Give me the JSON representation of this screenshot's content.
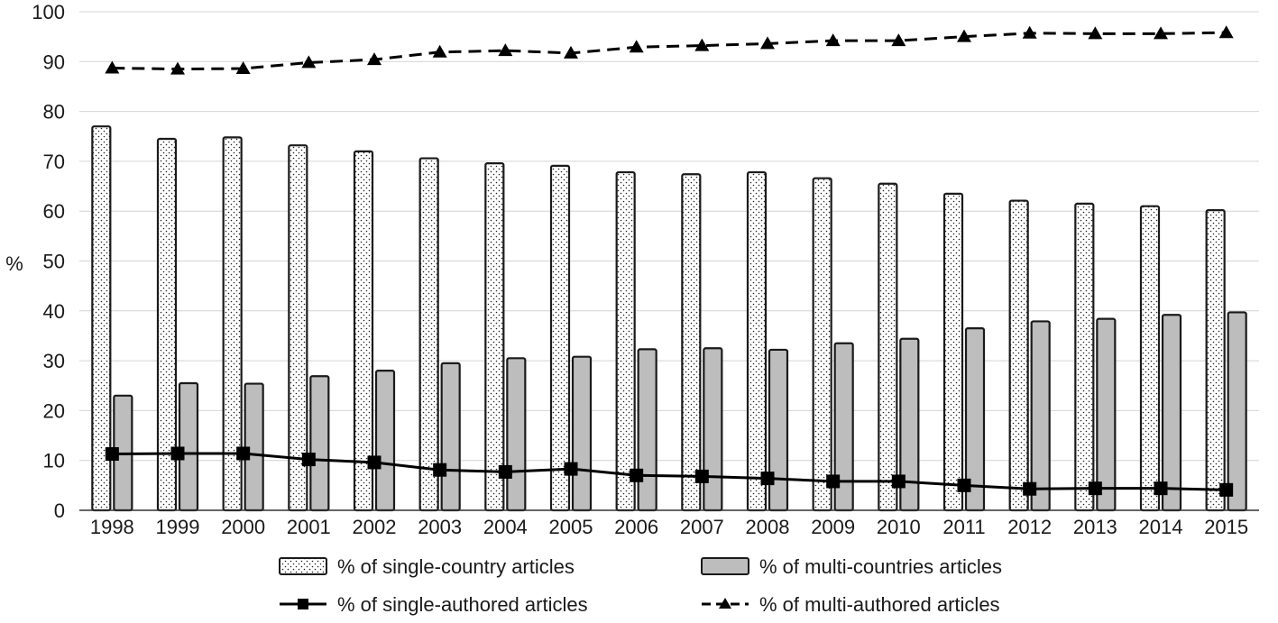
{
  "chart_data": {
    "type": "bar",
    "ylabel": "%",
    "xlabel": "",
    "ylim": [
      0,
      100
    ],
    "yticks": [
      0,
      10,
      20,
      30,
      40,
      50,
      60,
      70,
      80,
      90,
      100
    ],
    "grid": "horizontal",
    "legend_placement": "bottom",
    "categories": [
      "1998",
      "1999",
      "2000",
      "2001",
      "2002",
      "2003",
      "2004",
      "2005",
      "2006",
      "2007",
      "2008",
      "2009",
      "2010",
      "2011",
      "2012",
      "2013",
      "2014",
      "2015"
    ],
    "bar_series": [
      {
        "name": "% of single-country articles",
        "style": "dotted",
        "color": "#ffffff",
        "values": [
          77,
          74.5,
          74.8,
          73.2,
          72,
          70.6,
          69.6,
          69.1,
          67.8,
          67.4,
          67.8,
          66.6,
          65.5,
          63.5,
          62.1,
          61.5,
          61,
          60.2
        ]
      },
      {
        "name": "% of multi-countries articles",
        "style": "solid",
        "color": "#bdbdbd",
        "values": [
          23,
          25.5,
          25.4,
          26.9,
          28,
          29.5,
          30.5,
          30.8,
          32.3,
          32.5,
          32.2,
          33.5,
          34.4,
          36.5,
          37.9,
          38.4,
          39.2,
          39.7
        ]
      }
    ],
    "line_series": [
      {
        "name": "% of single-authored articles",
        "marker": "square",
        "dash": "solid",
        "color": "#000000",
        "values": [
          11.3,
          11.4,
          11.4,
          10.2,
          9.6,
          8.1,
          7.7,
          8.3,
          7,
          6.8,
          6.4,
          5.8,
          5.8,
          5,
          4.3,
          4.4,
          4.4,
          4.1
        ]
      },
      {
        "name": "% of multi-authored articles",
        "marker": "triangle",
        "dash": "dashed",
        "color": "#000000",
        "values": [
          88.7,
          88.5,
          88.6,
          89.8,
          90.4,
          91.9,
          92.2,
          91.7,
          92.9,
          93.2,
          93.6,
          94.2,
          94.2,
          95,
          95.7,
          95.6,
          95.6,
          95.8
        ]
      }
    ]
  }
}
